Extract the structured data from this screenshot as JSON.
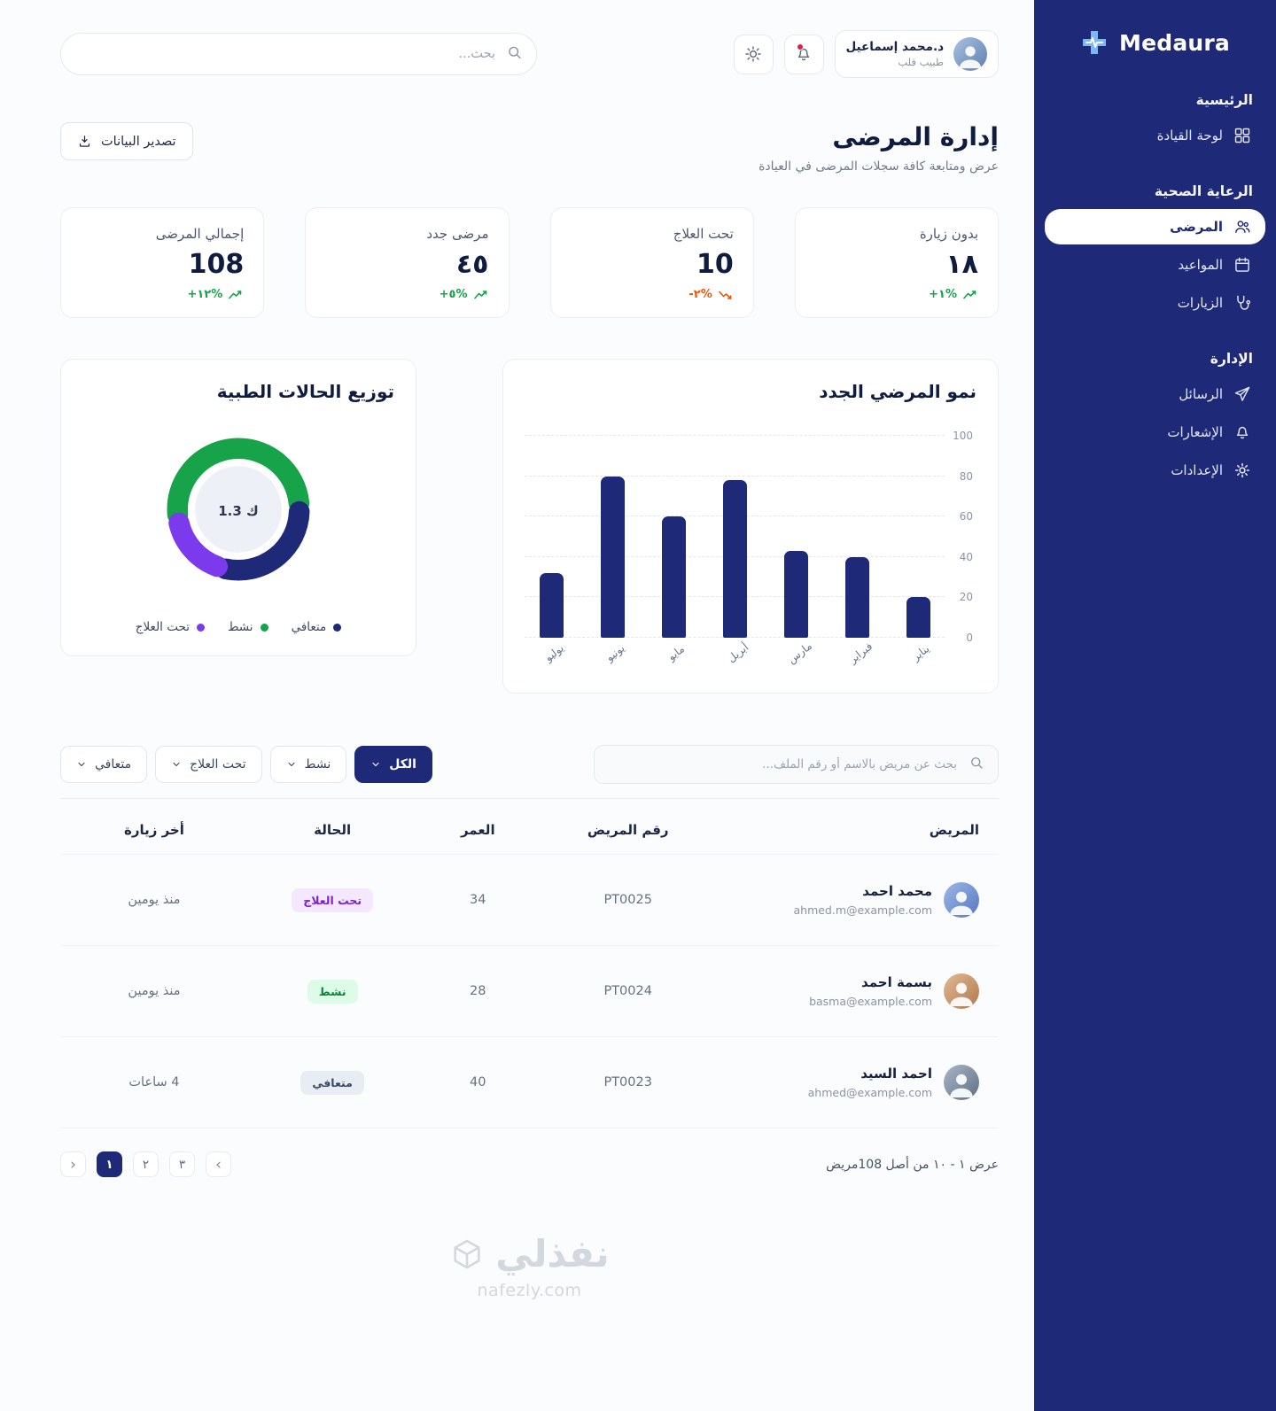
{
  "colors": {
    "sidebar_navy": "#1e2a78",
    "green": "#16a34a",
    "orange": "#ea580c",
    "purple": "#7c3aed"
  },
  "brand": {
    "name": "Medaura"
  },
  "sidebar": {
    "sections": {
      "main": "الرئيسية",
      "care": "الرعاية الصحية",
      "admin": "الإدارة"
    },
    "items": {
      "dashboard": "لوحة القيادة",
      "patients": "المرضى",
      "appointments": "المواعيد",
      "visits": "الزيارات",
      "messages": "الرسائل",
      "notifications": "الإشعارات",
      "settings": "الإعدادات"
    }
  },
  "topbar": {
    "search_placeholder": "بحث...",
    "user": {
      "name": "د.محمد إسماعيل",
      "role": "طبيب قلب"
    }
  },
  "header": {
    "title": "إدارة المرضى",
    "subtitle": "عرض ومتابعة كافة سجلات المرضى في العيادة",
    "export_label": "تصدير البيانات"
  },
  "stats": [
    {
      "label": "بدون زيارة",
      "value": "١٨",
      "change": "+١%",
      "trend": "up"
    },
    {
      "label": "تحت العلاج",
      "value": "10",
      "change": "-٢%",
      "trend": "down"
    },
    {
      "label": "مرضى جدد",
      "value": "٤٥",
      "change": "+٥%",
      "trend": "up"
    },
    {
      "label": "إجمالي المرضى",
      "value": "108",
      "change": "+١٢%",
      "trend": "up"
    }
  ],
  "chart_data": [
    {
      "type": "bar",
      "title": "نمو المرضي الجدد",
      "categories": [
        "يناير",
        "فبراير",
        "مارس",
        "أبريل",
        "مايو",
        "يونيو",
        "يوليو"
      ],
      "values": [
        20,
        40,
        43,
        78,
        60,
        80,
        32
      ],
      "ylim": [
        0,
        100
      ],
      "y_ticks": [
        0,
        20,
        40,
        60,
        80,
        100
      ],
      "bar_color": "#1e2a78",
      "grid": "dashed-horizontal",
      "y_axis_side": "right"
    },
    {
      "type": "donut",
      "title": "توزيع الحالات الطبية",
      "center_label": "1.3 ك",
      "start_angle": -95,
      "gap_deg": 8,
      "segments": [
        {
          "label": "نشط",
          "value": 52,
          "color": "#16a34a"
        },
        {
          "label": "متعافي",
          "value": 30,
          "color": "#1e2a78"
        },
        {
          "label": "تحت العلاج",
          "value": 18,
          "color": "#7c3aed"
        }
      ],
      "legend_position": "bottom"
    }
  ],
  "filters": {
    "search_placeholder": "بحث عن مريض بالاسم أو رقم الملف...",
    "options": [
      {
        "label": "الكل",
        "active": true
      },
      {
        "label": "نشط",
        "active": false
      },
      {
        "label": "تحت العلاج",
        "active": false
      },
      {
        "label": "متعافي",
        "active": false
      }
    ]
  },
  "table": {
    "columns": [
      "المريض",
      "رقم المريض",
      "العمر",
      "الحالة",
      "أخر زيارة"
    ],
    "rows": [
      {
        "name": "محمد احمد",
        "email": "ahmed.m@example.com",
        "id": "PT0025",
        "age": "34",
        "status": "تحت العلاج",
        "status_type": "treatment",
        "last_visit": "منذ يومين"
      },
      {
        "name": "بسمة احمد",
        "email": "basma@example.com",
        "id": "PT0024",
        "age": "28",
        "status": "نشط",
        "status_type": "active",
        "last_visit": "منذ يومين"
      },
      {
        "name": "احمد السيد",
        "email": "ahmed@example.com",
        "id": "PT0023",
        "age": "40",
        "status": "متعافي",
        "status_type": "recovered",
        "last_visit": "4 ساعات"
      }
    ]
  },
  "pagination": {
    "summary": "عرض ١ - ١٠ من أصل 108مريض",
    "chevrons": {
      "left": "›",
      "right": "‹"
    },
    "pages": [
      "١",
      "٢",
      "٣"
    ],
    "active_page": "١"
  },
  "watermark": {
    "name": "نفذلي",
    "domain": "nafezly.com"
  }
}
